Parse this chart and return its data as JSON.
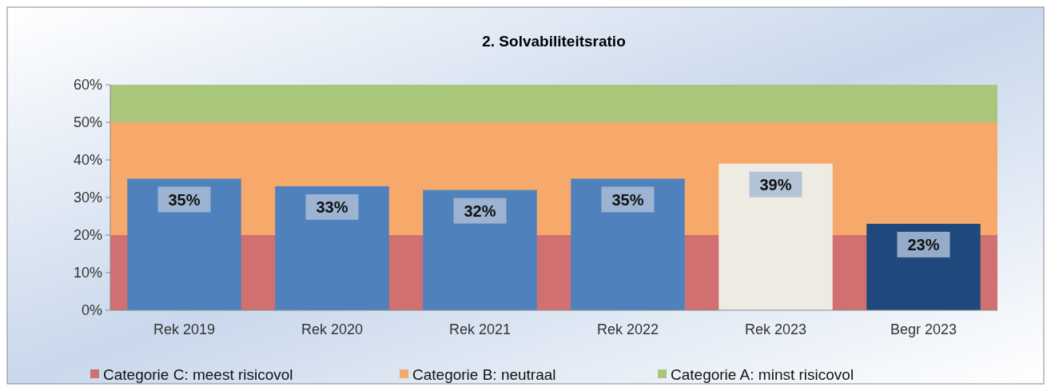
{
  "chart_data": {
    "type": "bar",
    "title": "2. Solvabiliteitsratio",
    "categories": [
      "Rek 2019",
      "Rek 2020",
      "Rek 2021",
      "Rek 2022",
      "Rek 2023",
      "Begr 2023"
    ],
    "values": [
      35,
      33,
      32,
      35,
      39,
      23
    ],
    "colors": [
      "#4f81bd",
      "#4f81bd",
      "#4f81bd",
      "#4f81bd",
      "#eeebe2",
      "#1f497d"
    ],
    "value_labels": [
      "35%",
      "33%",
      "32%",
      "35%",
      "39%",
      "23%"
    ],
    "ylim": [
      0,
      60
    ],
    "yticks": [
      {
        "value": 0,
        "label": "0%"
      },
      {
        "value": 10,
        "label": "10%"
      },
      {
        "value": 20,
        "label": "20%"
      },
      {
        "value": 30,
        "label": "30%"
      },
      {
        "value": 40,
        "label": "40%"
      },
      {
        "value": 50,
        "label": "50%"
      },
      {
        "value": 60,
        "label": "60%"
      }
    ],
    "bands": [
      {
        "axis": "y",
        "from": 0,
        "to": 20,
        "label": "Categorie C: meest risicovol",
        "color": "#d07070"
      },
      {
        "axis": "y",
        "from": 20,
        "to": 50,
        "label": "Categorie B: neutraal",
        "color": "#f6a96a"
      },
      {
        "axis": "y",
        "from": 50,
        "to": 60,
        "label": "Categorie A: minst risicovol",
        "color": "#a9c77a"
      }
    ],
    "legend": "bottom"
  }
}
